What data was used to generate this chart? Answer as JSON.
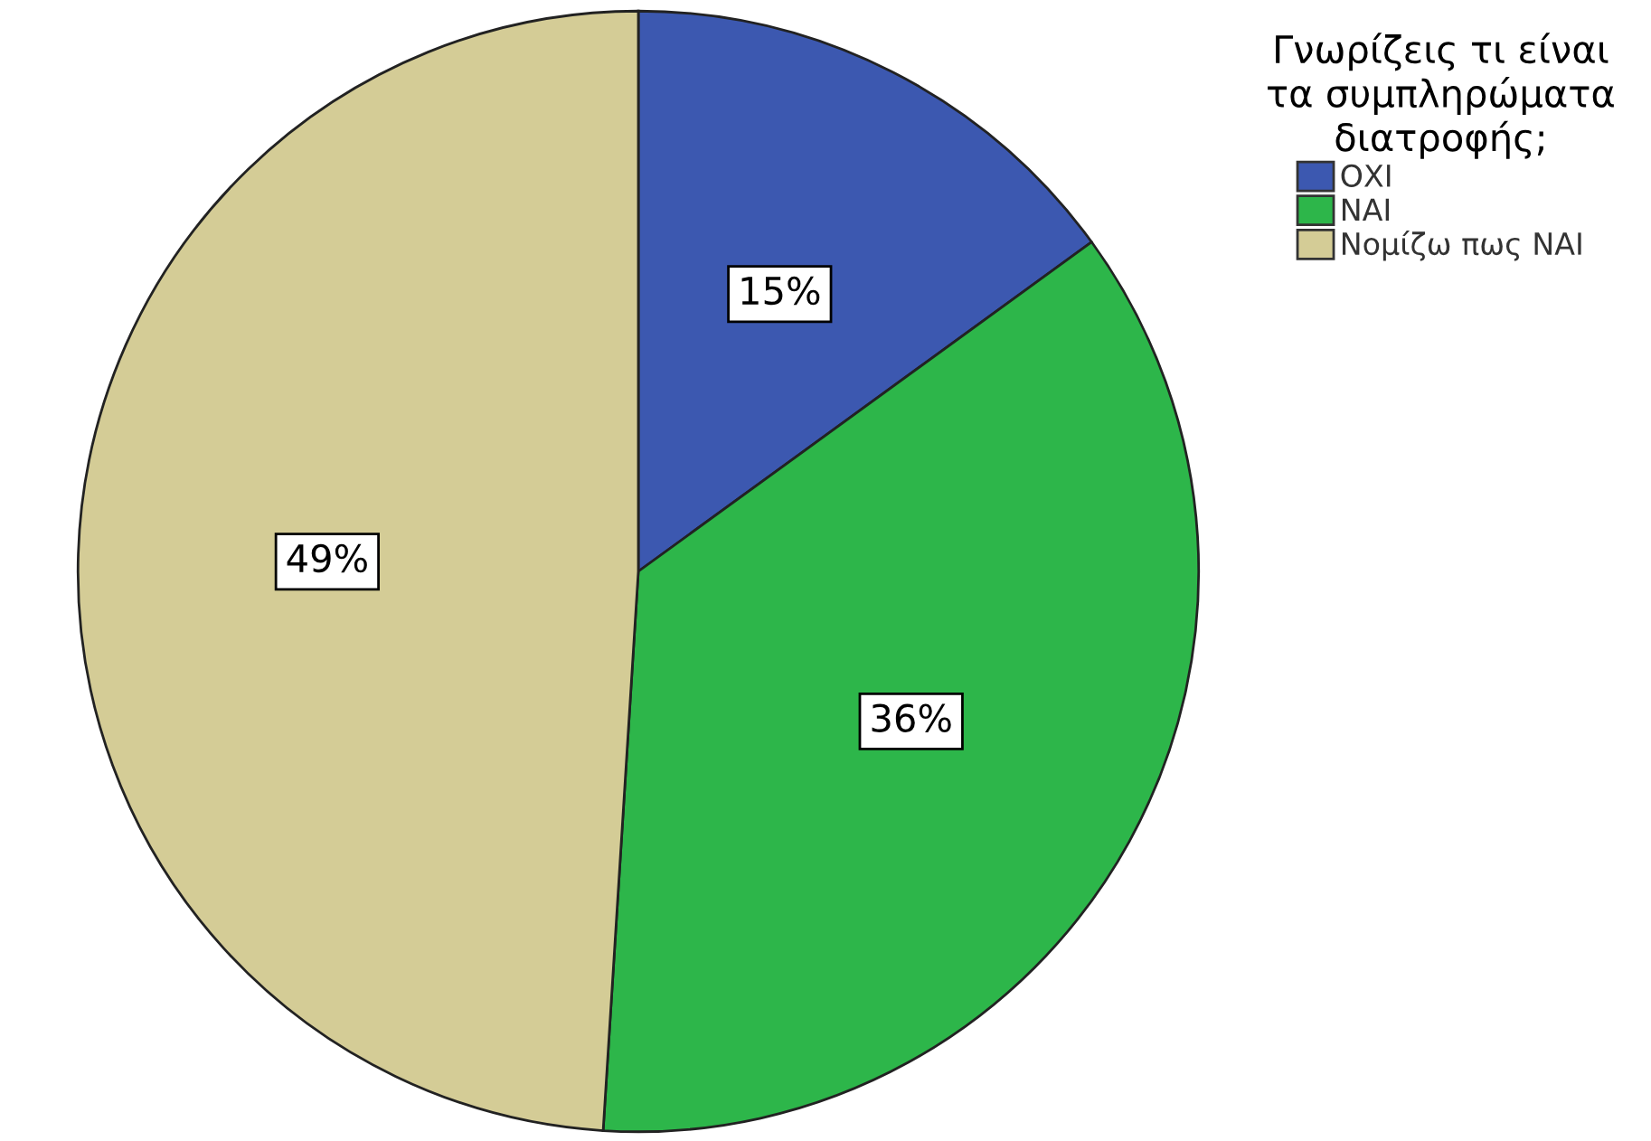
{
  "chart_data": {
    "type": "pie",
    "legend_title": "Γνωρίζεις τι είναι\nτα συμπληρώματα\nδιατροφής;",
    "categories": [
      "ΟΧΙ",
      "ΝΑΙ",
      "Νομίζω πως ΝΑΙ"
    ],
    "values": [
      15,
      36,
      49
    ],
    "colors": [
      "#3c58b0",
      "#2db64a",
      "#d4cc96"
    ],
    "value_labels": [
      "15%",
      "36%",
      "49%"
    ],
    "legend": "top right"
  }
}
